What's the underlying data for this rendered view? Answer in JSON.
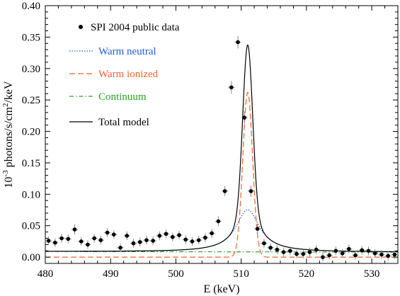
{
  "chart_data": {
    "type": "scatter",
    "xlabel": "E (keV)",
    "ylabel_parts": [
      "10",
      "-3",
      " photons/s/cm",
      "2",
      "/keV"
    ],
    "xlim": [
      480,
      534
    ],
    "ylim": [
      -0.01,
      0.4
    ],
    "x_ticks": [
      480,
      490,
      500,
      510,
      520,
      530
    ],
    "x_tick_labels": [
      "480",
      "490",
      "500",
      "510",
      "520",
      "530"
    ],
    "y_ticks": [
      0.0,
      0.05,
      0.1,
      0.15,
      0.2,
      0.25,
      0.3,
      0.35,
      0.4
    ],
    "y_tick_labels": [
      "0.00",
      "0.05",
      "0.10",
      "0.15",
      "0.20",
      "0.25",
      "0.30",
      "0.35",
      "0.40"
    ],
    "grid": false,
    "legend_placement": "top-left",
    "legend": [
      {
        "label": "SPI 2004 public data",
        "style": "points",
        "color": "#000000"
      },
      {
        "label": "Warm neutral",
        "style": "dotted",
        "color": "#1f5fd6"
      },
      {
        "label": "Warm ionized",
        "style": "dashed",
        "color": "#f0622a"
      },
      {
        "label": "Continuum",
        "style": "dash-dot",
        "color": "#2ca02c"
      },
      {
        "label": "Total model",
        "style": "solid",
        "color": "#000000"
      }
    ],
    "data_points": {
      "name": "SPI 2004 public data",
      "x": [
        480.5,
        481.5,
        482.5,
        483.5,
        484.5,
        485.5,
        486.5,
        487.5,
        488.5,
        489.5,
        490.5,
        491.5,
        492.5,
        493.5,
        494.5,
        495.5,
        496.5,
        497.5,
        498.5,
        499.5,
        500.5,
        501.5,
        502.5,
        503.5,
        504.5,
        505.5,
        506.5,
        507.5,
        508.5,
        509.5,
        510.5,
        511.5,
        512.5,
        513.5,
        514.5,
        515.5,
        516.5,
        517.5,
        518.5,
        519.5,
        520.5,
        521.5,
        522.5,
        523.5,
        524.5,
        525.5,
        526.5,
        527.5,
        528.5,
        529.5,
        530.5,
        531.5,
        532.5,
        533.5
      ],
      "y": [
        0.026,
        0.023,
        0.03,
        0.029,
        0.044,
        0.025,
        0.02,
        0.03,
        0.027,
        0.039,
        0.036,
        0.015,
        0.034,
        0.022,
        0.024,
        0.027,
        0.026,
        0.034,
        0.037,
        0.032,
        0.035,
        0.028,
        0.025,
        0.027,
        0.031,
        0.038,
        0.057,
        0.105,
        0.27,
        0.342,
        0.222,
        0.105,
        0.045,
        0.022,
        0.015,
        0.012,
        0.008,
        0.01,
        0.005,
        0.005,
        0.008,
        0.012,
        0.0,
        0.003,
        0.01,
        0.006,
        0.013,
        0.003,
        0.011,
        0.01,
        0.006,
        0.004,
        0.002,
        0.004
      ],
      "yerr": [
        0.007,
        0.007,
        0.007,
        0.007,
        0.008,
        0.007,
        0.007,
        0.007,
        0.007,
        0.007,
        0.007,
        0.007,
        0.007,
        0.007,
        0.007,
        0.007,
        0.007,
        0.007,
        0.007,
        0.007,
        0.007,
        0.007,
        0.007,
        0.007,
        0.007,
        0.007,
        0.008,
        0.008,
        0.01,
        0.01,
        0.01,
        0.009,
        0.008,
        0.007,
        0.007,
        0.007,
        0.007,
        0.007,
        0.007,
        0.007,
        0.007,
        0.007,
        0.007,
        0.007,
        0.007,
        0.007,
        0.007,
        0.007,
        0.007,
        0.007,
        0.007,
        0.007,
        0.007,
        0.007
      ]
    },
    "model": {
      "continuum": {
        "at_480": 0.009,
        "at_534": 0.008
      },
      "warm_neutral": {
        "amplitude": 0.067,
        "center": 511.0,
        "width": 2.2,
        "shape": "lorentzian"
      },
      "warm_ionized": {
        "amplitude": 0.262,
        "center": 511.0,
        "sigma": 0.75,
        "shape": "gaussian"
      },
      "total_peak": 0.354
    }
  }
}
